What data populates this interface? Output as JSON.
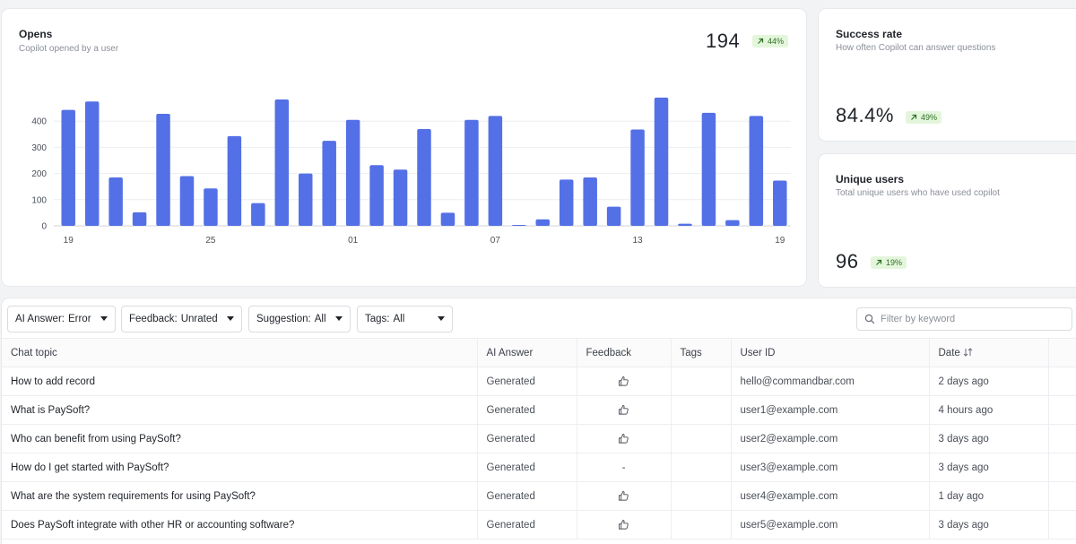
{
  "opens": {
    "title": "Opens",
    "subtitle": "Copilot opened by a user",
    "value": "194",
    "delta": "44%"
  },
  "success": {
    "title": "Success rate",
    "subtitle": "How often Copilot can answer questions",
    "value": "84.4%",
    "delta": "49%"
  },
  "unique": {
    "title": "Unique users",
    "subtitle": "Total unique users who have used copilot",
    "value": "96",
    "delta": "19%"
  },
  "colors": {
    "bar": "#5470e6",
    "delta_bg": "#e3f6dc",
    "delta_text": "#2f6f23"
  },
  "chart_data": {
    "type": "bar",
    "x_tick_labels": [
      "19",
      "25",
      "01",
      "07",
      "13",
      "19"
    ],
    "x_tick_indices": [
      0,
      6,
      12,
      18,
      24,
      30
    ],
    "values": [
      443,
      475,
      185,
      52,
      428,
      190,
      143,
      343,
      87,
      483,
      200,
      325,
      405,
      232,
      215,
      370,
      50,
      405,
      420,
      3,
      25,
      177,
      185,
      73,
      368,
      490,
      8,
      432,
      22,
      420,
      173
    ],
    "ylim": [
      0,
      500
    ],
    "yticks": [
      0,
      100,
      200,
      300,
      400
    ],
    "grid": true
  },
  "filters": [
    {
      "label": "AI Answer:",
      "value": "Error"
    },
    {
      "label": "Feedback:",
      "value": "Unrated"
    },
    {
      "label": "Suggestion:",
      "value": "All"
    },
    {
      "label": "Tags:",
      "value": "All"
    }
  ],
  "search": {
    "placeholder": "Filter by keyword"
  },
  "table": {
    "columns": [
      "Chat topic",
      "AI Answer",
      "Feedback",
      "Tags",
      "User ID",
      "Date"
    ],
    "rows": [
      {
        "topic": "How to add record",
        "answer": "Generated",
        "feedback": "thumbs-up-icon",
        "tags": "",
        "user": "hello@commandbar.com",
        "date": "2 days ago"
      },
      {
        "topic": "What is PaySoft?",
        "answer": "Generated",
        "feedback": "thumbs-up-icon",
        "tags": "",
        "user": "user1@example.com",
        "date": "4 hours ago"
      },
      {
        "topic": "Who can benefit from using PaySoft?",
        "answer": "Generated",
        "feedback": "thumbs-up-icon",
        "tags": "",
        "user": "user2@example.com",
        "date": "3 days ago"
      },
      {
        "topic": "How do I get started with PaySoft?",
        "answer": "Generated",
        "feedback": "-",
        "tags": "",
        "user": "user3@example.com",
        "date": "3 days ago"
      },
      {
        "topic": "What are the system requirements for using PaySoft?",
        "answer": "Generated",
        "feedback": "thumbs-up-icon",
        "tags": "",
        "user": "user4@example.com",
        "date": "1 day ago"
      },
      {
        "topic": "Does PaySoft integrate with other HR or accounting software?",
        "answer": "Generated",
        "feedback": "thumbs-up-icon",
        "tags": "",
        "user": "user5@example.com",
        "date": "3 days ago"
      }
    ]
  }
}
